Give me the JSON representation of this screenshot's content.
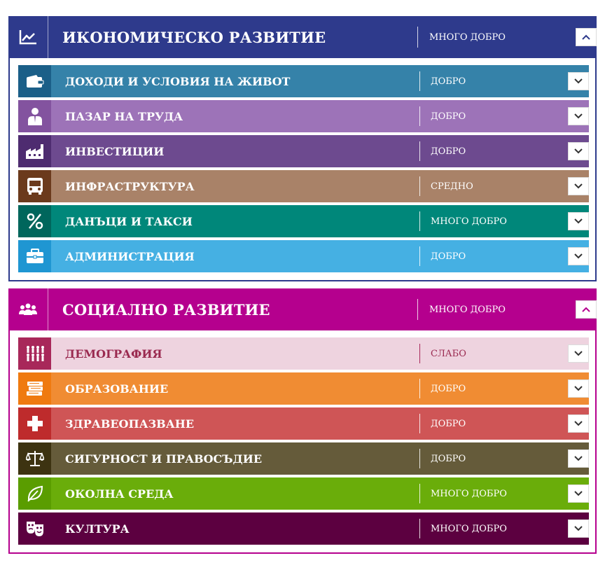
{
  "sections": [
    {
      "title": "ИКОНОМИЧЕСКО РАЗВИТИЕ",
      "rating": "МНОГО ДОБРО",
      "color": "#2e3a8c",
      "icon": "line-chart-icon",
      "items": [
        {
          "title": "ДОХОДИ И УСЛОВИЯ НА ЖИВОТ",
          "rating": "ДОБРО",
          "color": "#3582a9",
          "icon_bg": "#1b5f88",
          "icon": "wallet-icon"
        },
        {
          "title": "ПАЗАР НА ТРУДА",
          "rating": "ДОБРО",
          "color": "#9d73b8",
          "icon_bg": "#83539f",
          "icon": "worker-icon"
        },
        {
          "title": "ИНВЕСТИЦИИ",
          "rating": "ДОБРО",
          "color": "#6d4a8f",
          "icon_bg": "#4e2c70",
          "icon": "factory-icon"
        },
        {
          "title": "ИНФРАСТРУКТУРА",
          "rating": "СРЕДНО",
          "color": "#a98268",
          "icon_bg": "#6b3a1c",
          "icon": "bus-icon"
        },
        {
          "title": "ДАНЪЦИ И ТАКСИ",
          "rating": "МНОГО ДОБРО",
          "color": "#00877a",
          "icon_bg": "#00665c",
          "icon": "percent-icon"
        },
        {
          "title": "АДМИНИСТРАЦИЯ",
          "rating": "ДОБРО",
          "color": "#45b0e3",
          "icon_bg": "#1f96d2",
          "icon": "briefcase-icon"
        }
      ]
    },
    {
      "title": "СОЦИАЛНО РАЗВИТИЕ",
      "rating": "МНОГО ДОБРО",
      "color": "#b5008e",
      "icon": "people-group-icon",
      "items": [
        {
          "title": "ДЕМОГРАФИЯ",
          "rating": "СЛАБО",
          "color": "#eed3df",
          "icon_bg": "#a8285a",
          "icon": "population-icon",
          "text_color": "#9a2a50"
        },
        {
          "title": "ОБРАЗОВАНИЕ",
          "rating": "ДОБРО",
          "color": "#f08c33",
          "icon_bg": "#ef7a10",
          "icon": "books-icon"
        },
        {
          "title": "ЗДРАВЕОПАЗВАНЕ",
          "rating": "ДОБРО",
          "color": "#cf5556",
          "icon_bg": "#be2b2c",
          "icon": "medical-cross-icon"
        },
        {
          "title": "СИГУРНОСТ И ПРАВОСЪДИЕ",
          "rating": "ДОБРО",
          "color": "#655b3a",
          "icon_bg": "#3d3311",
          "icon": "scales-icon"
        },
        {
          "title": "ОКОЛНА СРЕДА",
          "rating": "МНОГО ДОБРО",
          "color": "#6aad0a",
          "icon_bg": "#5a9d00",
          "icon": "leaf-icon"
        },
        {
          "title": "КУЛТУРА",
          "rating": "МНОГО ДОБРО",
          "color": "#5c0040",
          "icon_bg": "#5c0040",
          "icon": "theater-masks-icon"
        }
      ]
    }
  ]
}
